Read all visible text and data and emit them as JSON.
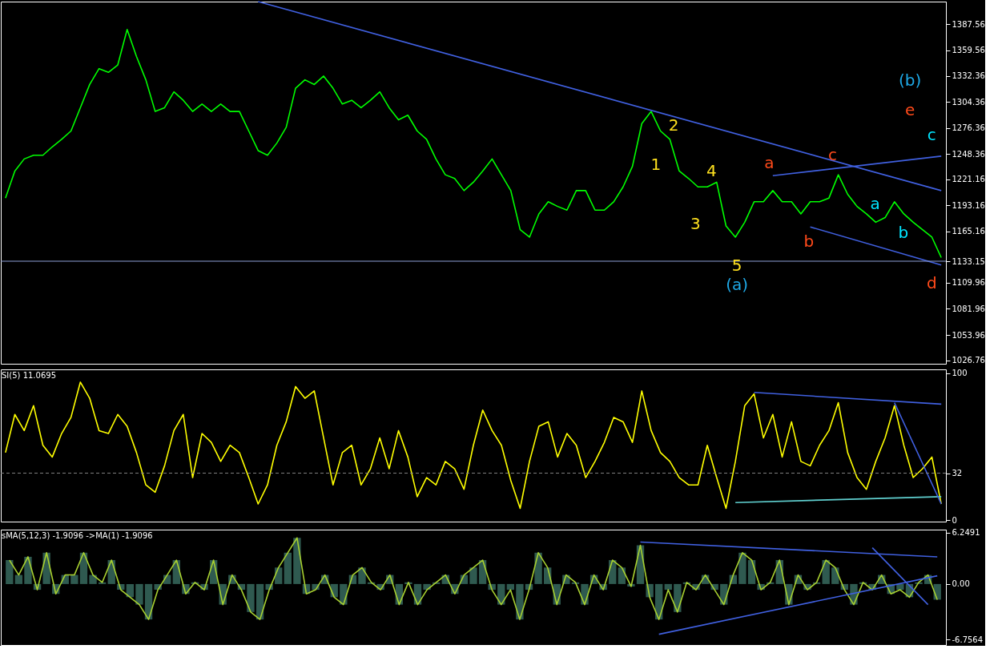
{
  "chart_data": [
    {
      "type": "line",
      "categories": [
        null,
        null,
        null,
        null,
        null,
        null,
        null,
        null,
        null,
        null,
        null,
        null,
        null,
        null,
        null,
        null,
        null,
        null,
        null,
        null,
        null,
        null,
        null,
        null,
        null,
        null,
        null,
        null,
        null,
        null,
        null,
        null,
        null,
        null,
        null,
        null,
        null,
        null,
        null,
        null,
        null,
        null,
        null,
        null,
        null,
        null,
        null,
        null,
        null,
        null,
        null,
        null,
        null,
        null,
        null,
        null,
        null,
        null,
        null,
        null,
        null,
        null,
        null,
        null,
        null,
        null,
        null,
        null,
        null,
        null,
        null,
        null,
        null,
        null,
        null,
        null,
        null,
        null,
        null,
        null,
        null,
        null,
        null,
        null,
        null,
        null,
        null,
        null,
        null,
        null,
        null,
        null,
        null,
        null,
        null,
        null,
        null,
        null,
        null,
        null,
        null
      ],
      "ylim": [
        1023,
        1412
      ],
      "tick_labels": "y",
      "grid": false,
      "yticks": [
        1387.56,
        1359.56,
        1332.36,
        1304.36,
        1276.36,
        1248.36,
        1221.16,
        1193.16,
        1165.16,
        1133.15,
        1109.96,
        1081.96,
        1053.96,
        1026.76
      ],
      "series": [
        {
          "color": "#00ff00",
          "values": [
            1201,
            1230,
            1243,
            1247,
            1247,
            1256,
            1264,
            1273,
            1298,
            1323,
            1340,
            1336,
            1344,
            1382,
            1353,
            1328,
            1294,
            1298,
            1315,
            1306,
            1294,
            1302,
            1294,
            1302,
            1294,
            1294,
            1273,
            1252,
            1247,
            1260,
            1277,
            1319,
            1328,
            1323,
            1332,
            1319,
            1302,
            1306,
            1298,
            1306,
            1315,
            1298,
            1285,
            1290,
            1273,
            1264,
            1243,
            1226,
            1222,
            1209,
            1218,
            1230,
            1243,
            1226,
            1209,
            1167,
            1159,
            1184,
            1197,
            1192,
            1188,
            1209,
            1209,
            1188,
            1188,
            1197,
            1213,
            1235,
            1281,
            1294,
            1273,
            1264,
            1230,
            1222,
            1213,
            1213,
            1218,
            1171,
            1159,
            1175,
            1197,
            1197,
            1209,
            1197,
            1197,
            1184,
            1197,
            1197,
            1201,
            1226,
            1205,
            1192,
            1184,
            1175,
            1180,
            1197,
            1184,
            1175,
            1167,
            1159,
            1137
          ]
        },
        {
          "type": "line",
          "color": "#4060e0",
          "values": [
            null,
            null,
            null,
            null,
            null,
            null,
            null,
            null,
            null,
            null,
            null,
            null,
            null,
            null,
            null,
            null,
            null,
            null,
            null,
            null,
            null,
            null,
            null,
            null,
            null,
            null,
            null,
            1412,
            null,
            null,
            null,
            null,
            null,
            null,
            null,
            null,
            null,
            null,
            null,
            null,
            null,
            null,
            null,
            null,
            null,
            null,
            null,
            null,
            null,
            null,
            null,
            null,
            null,
            null,
            null,
            null,
            null,
            null,
            null,
            null,
            null,
            null,
            null,
            null,
            null,
            null,
            null,
            null,
            null,
            null,
            null,
            null,
            null,
            null,
            null,
            null,
            null,
            null,
            null,
            null,
            null,
            null,
            null,
            null,
            null,
            null,
            null,
            null,
            null,
            null,
            null,
            null,
            null,
            null,
            null,
            null,
            null,
            null,
            null,
            null,
            1209
          ]
        },
        {
          "type": "line",
          "color": "#4060e0",
          "values": [
            null,
            null,
            null,
            null,
            null,
            null,
            null,
            null,
            null,
            null,
            null,
            null,
            null,
            null,
            null,
            null,
            null,
            null,
            null,
            null,
            null,
            null,
            null,
            null,
            null,
            null,
            null,
            null,
            null,
            null,
            null,
            null,
            null,
            null,
            null,
            null,
            null,
            null,
            null,
            null,
            null,
            null,
            null,
            null,
            null,
            null,
            null,
            null,
            null,
            null,
            null,
            null,
            null,
            null,
            null,
            null,
            null,
            null,
            null,
            null,
            null,
            null,
            null,
            null,
            null,
            null,
            null,
            null,
            null,
            null,
            null,
            null,
            null,
            null,
            null,
            null,
            null,
            null,
            null,
            null,
            null,
            null,
            1225,
            null,
            null,
            null,
            null,
            null,
            null,
            null,
            null,
            null,
            null,
            null,
            null,
            null,
            null,
            null,
            null,
            null,
            1246
          ]
        },
        {
          "type": "line",
          "color": "#4060e0",
          "values": [
            null,
            null,
            null,
            null,
            null,
            null,
            null,
            null,
            null,
            null,
            null,
            null,
            null,
            null,
            null,
            null,
            null,
            null,
            null,
            null,
            null,
            null,
            null,
            null,
            null,
            null,
            null,
            null,
            null,
            null,
            null,
            null,
            null,
            null,
            null,
            null,
            null,
            null,
            null,
            null,
            null,
            null,
            null,
            null,
            null,
            null,
            null,
            null,
            null,
            null,
            null,
            null,
            null,
            null,
            null,
            null,
            null,
            null,
            null,
            null,
            null,
            null,
            null,
            null,
            null,
            null,
            null,
            null,
            null,
            null,
            null,
            null,
            null,
            null,
            null,
            null,
            null,
            null,
            null,
            null,
            null,
            null,
            null,
            null,
            null,
            null,
            1170,
            null,
            null,
            null,
            null,
            null,
            null,
            null,
            null,
            null,
            null,
            null,
            null,
            null,
            1129
          ]
        }
      ],
      "ref_lines": [
        {
          "axis": "y",
          "value": 1133.15,
          "color": "#8fa0d8"
        }
      ],
      "annotations": [
        "1",
        "2",
        "3",
        "4",
        "5",
        "(a)",
        "a",
        "b",
        "c",
        "d",
        "e",
        "(b)",
        "a",
        "b",
        "c"
      ]
    },
    {
      "type": "line",
      "title": "SI(5) 11.0695",
      "categories": [
        null,
        null,
        null,
        null,
        null,
        null,
        null,
        null,
        null,
        null,
        null,
        null,
        null,
        null,
        null,
        null,
        null,
        null,
        null,
        null,
        null,
        null,
        null,
        null,
        null,
        null,
        null,
        null,
        null,
        null,
        null,
        null,
        null,
        null,
        null,
        null,
        null,
        null,
        null,
        null,
        null,
        null,
        null,
        null,
        null,
        null,
        null,
        null,
        null,
        null,
        null,
        null,
        null,
        null,
        null,
        null,
        null,
        null,
        null,
        null,
        null,
        null,
        null,
        null,
        null,
        null,
        null,
        null,
        null,
        null,
        null,
        null,
        null,
        null,
        null,
        null,
        null,
        null,
        null,
        null,
        null,
        null,
        null,
        null,
        null,
        null,
        null,
        null,
        null,
        null,
        null,
        null,
        null,
        null,
        null,
        null,
        null,
        null,
        null,
        null,
        null
      ],
      "ylim": [
        -1,
        102.7
      ],
      "yticks": [
        0,
        32,
        100
      ],
      "tick_labels": "y",
      "grid": false,
      "series": [
        {
          "color": "#ffff00",
          "values": [
            46,
            72,
            61,
            78,
            51,
            43,
            59,
            70,
            94,
            83,
            61,
            59,
            72,
            64,
            46,
            24,
            19,
            37,
            61,
            72,
            29,
            59,
            53,
            40,
            51,
            46,
            29,
            11,
            24,
            51,
            67,
            91,
            83,
            88,
            56,
            24,
            46,
            51,
            24,
            35,
            56,
            35,
            61,
            43,
            16,
            29,
            24,
            40,
            35,
            21,
            51,
            75,
            61,
            51,
            27,
            8,
            40,
            64,
            67,
            43,
            59,
            51,
            29,
            40,
            53,
            70,
            67,
            53,
            88,
            61,
            46,
            40,
            29,
            24,
            24,
            51,
            29,
            8,
            40,
            78,
            86,
            56,
            72,
            43,
            67,
            40,
            37,
            51,
            61,
            80,
            46,
            29,
            21,
            40,
            56,
            78,
            51,
            29,
            35,
            43,
            11
          ]
        },
        {
          "type": "line",
          "color": "#4060e0",
          "values": [
            null,
            null,
            null,
            null,
            null,
            null,
            null,
            null,
            null,
            null,
            null,
            null,
            null,
            null,
            null,
            null,
            null,
            null,
            null,
            null,
            null,
            null,
            null,
            null,
            null,
            null,
            null,
            null,
            null,
            null,
            null,
            null,
            null,
            null,
            null,
            null,
            null,
            null,
            null,
            null,
            null,
            null,
            null,
            null,
            null,
            null,
            null,
            null,
            null,
            null,
            null,
            null,
            null,
            null,
            null,
            null,
            null,
            null,
            null,
            null,
            null,
            null,
            null,
            null,
            null,
            null,
            null,
            null,
            null,
            null,
            null,
            null,
            null,
            null,
            null,
            null,
            null,
            null,
            null,
            null,
            87,
            null,
            null,
            null,
            null,
            null,
            null,
            null,
            null,
            null,
            null,
            null,
            null,
            null,
            null,
            null,
            null,
            null,
            null,
            null,
            79
          ]
        },
        {
          "type": "line",
          "color": "#60d0d0",
          "values": [
            null,
            null,
            null,
            null,
            null,
            null,
            null,
            null,
            null,
            null,
            null,
            null,
            null,
            null,
            null,
            null,
            null,
            null,
            null,
            null,
            null,
            null,
            null,
            null,
            null,
            null,
            null,
            null,
            null,
            null,
            null,
            null,
            null,
            null,
            null,
            null,
            null,
            null,
            null,
            null,
            null,
            null,
            null,
            null,
            null,
            null,
            null,
            null,
            null,
            null,
            null,
            null,
            null,
            null,
            null,
            null,
            null,
            null,
            null,
            null,
            null,
            null,
            null,
            null,
            null,
            null,
            null,
            null,
            null,
            null,
            null,
            null,
            null,
            null,
            null,
            null,
            null,
            null,
            12,
            null,
            null,
            null,
            null,
            null,
            null,
            null,
            null,
            null,
            null,
            null,
            null,
            null,
            null,
            null,
            null,
            null,
            null,
            null,
            null,
            null,
            16
          ]
        },
        {
          "type": "line",
          "color": "#4060e0",
          "values": [
            null,
            null,
            null,
            null,
            null,
            null,
            null,
            null,
            null,
            null,
            null,
            null,
            null,
            null,
            null,
            null,
            null,
            null,
            null,
            null,
            null,
            null,
            null,
            null,
            null,
            null,
            null,
            null,
            null,
            null,
            null,
            null,
            null,
            null,
            null,
            null,
            null,
            null,
            null,
            null,
            null,
            null,
            null,
            null,
            null,
            null,
            null,
            null,
            null,
            null,
            null,
            null,
            null,
            null,
            null,
            null,
            null,
            null,
            null,
            null,
            null,
            null,
            null,
            null,
            null,
            null,
            null,
            null,
            null,
            null,
            null,
            null,
            null,
            null,
            null,
            null,
            null,
            null,
            null,
            null,
            null,
            null,
            null,
            null,
            null,
            null,
            null,
            null,
            null,
            null,
            null,
            null,
            null,
            null,
            null,
            80,
            null,
            null,
            null,
            null,
            11
          ]
        }
      ],
      "ref_lines": [
        {
          "axis": "y",
          "value": 32,
          "color": "#808080",
          "line_style": "dashed"
        }
      ]
    },
    {
      "type": "line",
      "title": "sMA(5,12,3) -1.9096  ->MA(1) -1.9096",
      "categories": [
        null,
        null,
        null,
        null,
        null,
        null,
        null,
        null,
        null,
        null,
        null,
        null,
        null,
        null,
        null,
        null,
        null,
        null,
        null,
        null,
        null,
        null,
        null,
        null,
        null,
        null,
        null,
        null,
        null,
        null,
        null,
        null,
        null,
        null,
        null,
        null,
        null,
        null,
        null,
        null,
        null,
        null,
        null,
        null,
        null,
        null,
        null,
        null,
        null,
        null,
        null,
        null,
        null,
        null,
        null,
        null,
        null,
        null,
        null,
        null,
        null,
        null,
        null,
        null,
        null,
        null,
        null,
        null,
        null,
        null,
        null,
        null,
        null,
        null,
        null,
        null,
        null,
        null,
        null,
        null,
        null,
        null,
        null,
        null,
        null,
        null,
        null,
        null,
        null,
        null,
        null,
        null,
        null,
        null,
        null,
        null,
        null,
        null,
        null,
        null,
        null
      ],
      "ylim": [
        -7.4,
        6.6
      ],
      "yticks": [
        -6.7564,
        {
          "value": 0,
          "label": "0.00"
        },
        6.2491
      ],
      "tick_labels": "y",
      "grid": false,
      "series": [
        {
          "type": "bar",
          "color": "#2f5a50",
          "values": [
            2.9,
            1.1,
            3.3,
            -0.7,
            3.8,
            -1.2,
            1.1,
            1.1,
            3.8,
            1.1,
            0.2,
            2.9,
            -0.7,
            -1.6,
            -2.5,
            -4.3,
            -0.7,
            1.1,
            2.9,
            -1.2,
            0.2,
            -0.7,
            2.9,
            -2.5,
            1.1,
            -0.7,
            -3.4,
            -4.3,
            -0.7,
            2.0,
            3.8,
            5.6,
            -1.2,
            -0.7,
            1.1,
            -1.6,
            -2.5,
            1.1,
            2.0,
            0.2,
            -0.7,
            1.1,
            -2.5,
            0.2,
            -2.5,
            -0.7,
            0.2,
            1.1,
            -1.2,
            1.1,
            2.0,
            2.9,
            -0.7,
            -2.5,
            -0.7,
            -4.3,
            -0.7,
            3.8,
            2.0,
            -2.5,
            1.1,
            0.2,
            -2.5,
            1.1,
            -0.7,
            2.9,
            2.0,
            -0.3,
            4.7,
            -1.6,
            -4.3,
            -0.7,
            -3.4,
            0.2,
            -0.7,
            1.1,
            -0.7,
            -2.5,
            1.1,
            3.8,
            2.9,
            -0.7,
            0.2,
            2.9,
            -2.5,
            1.1,
            -0.7,
            0.2,
            2.9,
            2.0,
            -0.7,
            -2.5,
            0.2,
            -0.7,
            1.1,
            -1.2,
            -0.7,
            -1.6,
            0.2,
            1.1,
            -1.9
          ]
        },
        {
          "type": "line",
          "color": "#a8d030",
          "values": [
            2.9,
            1.1,
            3.3,
            -0.7,
            3.8,
            -1.2,
            1.1,
            1.1,
            3.8,
            1.1,
            0.2,
            2.9,
            -0.7,
            -1.6,
            -2.5,
            -4.3,
            -0.7,
            1.1,
            2.9,
            -1.2,
            0.2,
            -0.7,
            2.9,
            -2.5,
            1.1,
            -0.7,
            -3.4,
            -4.3,
            -0.7,
            2.0,
            3.8,
            5.6,
            -1.2,
            -0.7,
            1.1,
            -1.6,
            -2.5,
            1.1,
            2.0,
            0.2,
            -0.7,
            1.1,
            -2.5,
            0.2,
            -2.5,
            -0.7,
            0.2,
            1.1,
            -1.2,
            1.1,
            2.0,
            2.9,
            -0.7,
            -2.5,
            -0.7,
            -4.3,
            -0.7,
            3.8,
            2.0,
            -2.5,
            1.1,
            0.2,
            -2.5,
            1.1,
            -0.7,
            2.9,
            2.0,
            -0.3,
            4.7,
            -1.6,
            -4.3,
            -0.7,
            -3.4,
            0.2,
            -0.7,
            1.1,
            -0.7,
            -2.5,
            1.1,
            3.8,
            2.9,
            -0.7,
            0.2,
            2.9,
            -2.5,
            1.1,
            -0.7,
            0.2,
            2.9,
            2.0,
            -0.7,
            -2.5,
            0.2,
            -0.7,
            1.1,
            -1.2,
            -0.7,
            -1.6,
            0.2,
            1.1,
            -1.9
          ]
        },
        {
          "type": "line",
          "color": "#4060e0",
          "values": [
            null,
            null,
            null,
            null,
            null,
            null,
            null,
            null,
            null,
            null,
            null,
            null,
            null,
            null,
            null,
            null,
            null,
            null,
            null,
            null,
            null,
            null,
            null,
            null,
            null,
            null,
            null,
            null,
            null,
            null,
            null,
            null,
            null,
            null,
            null,
            null,
            null,
            null,
            null,
            null,
            null,
            null,
            null,
            null,
            null,
            null,
            null,
            null,
            null,
            null,
            null,
            null,
            null,
            null,
            null,
            null,
            null,
            null,
            null,
            null,
            null,
            null,
            null,
            null,
            null,
            null,
            null,
            null,
            5.1,
            null,
            null,
            null,
            null,
            null,
            null,
            null,
            null,
            null,
            null,
            null,
            null,
            null,
            null,
            null,
            null,
            null,
            null,
            null,
            null,
            null,
            null,
            null,
            null,
            null,
            null,
            null,
            null,
            null,
            null,
            null,
            3.3
          ]
        },
        {
          "type": "line",
          "color": "#4060e0",
          "values": [
            null,
            null,
            null,
            null,
            null,
            null,
            null,
            null,
            null,
            null,
            null,
            null,
            null,
            null,
            null,
            null,
            null,
            null,
            null,
            null,
            null,
            null,
            null,
            null,
            null,
            null,
            null,
            null,
            null,
            null,
            null,
            null,
            null,
            null,
            null,
            null,
            null,
            null,
            null,
            null,
            null,
            null,
            null,
            null,
            null,
            null,
            null,
            null,
            null,
            null,
            null,
            null,
            null,
            null,
            null,
            null,
            null,
            null,
            null,
            null,
            null,
            null,
            null,
            null,
            null,
            null,
            null,
            null,
            null,
            null,
            -6.1,
            null,
            null,
            null,
            null,
            null,
            null,
            null,
            null,
            null,
            null,
            null,
            null,
            null,
            null,
            null,
            null,
            null,
            null,
            null,
            null,
            null,
            null,
            null,
            null,
            null,
            null,
            null,
            null,
            null,
            1.0
          ]
        },
        {
          "type": "line",
          "color": "#4060e0",
          "values": [
            null,
            null,
            null,
            null,
            null,
            null,
            null,
            null,
            null,
            null,
            null,
            null,
            null,
            null,
            null,
            null,
            null,
            null,
            null,
            null,
            null,
            null,
            null,
            null,
            null,
            null,
            null,
            null,
            null,
            null,
            null,
            null,
            null,
            null,
            null,
            null,
            null,
            null,
            null,
            null,
            null,
            null,
            null,
            null,
            null,
            null,
            null,
            null,
            null,
            null,
            null,
            null,
            null,
            null,
            null,
            null,
            null,
            null,
            null,
            null,
            null,
            null,
            null,
            null,
            null,
            null,
            null,
            null,
            null,
            null,
            null,
            null,
            null,
            null,
            null,
            null,
            null,
            null,
            null,
            null,
            null,
            null,
            null,
            null,
            null,
            null,
            null,
            null,
            null,
            null,
            null,
            null,
            null,
            4.4,
            null,
            null,
            null,
            null,
            null,
            -2.5,
            null
          ]
        }
      ]
    }
  ]
}
